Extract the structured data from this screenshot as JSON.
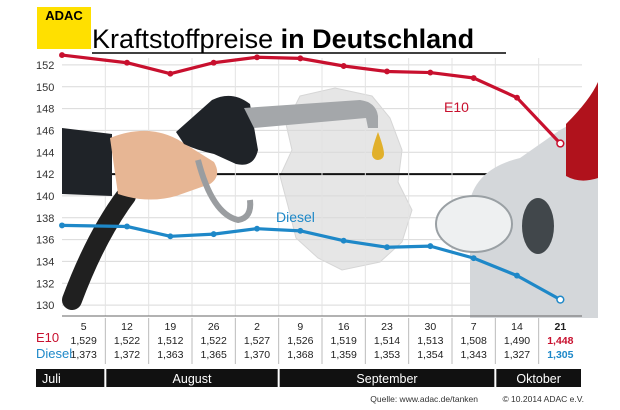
{
  "logo": "ADAC",
  "title_light": "Kraftstoffpreise",
  "title_bold": "in Deutschland",
  "source": "Quelle: www.adac.de/tanken",
  "copyright": "© 10.2014  ADAC e.V.",
  "colors": {
    "logo_bg": "#ffe000",
    "e10": "#c8102e",
    "diesel": "#1e88c8",
    "month_bar": "#111111"
  },
  "chart_data": {
    "type": "line",
    "title": "Kraftstoffpreise in Deutschland",
    "xlabel": "",
    "ylabel": "",
    "ylim": [
      129,
      153
    ],
    "yticks": [
      130,
      132,
      134,
      136,
      138,
      140,
      142,
      144,
      146,
      148,
      150,
      152
    ],
    "grid": true,
    "categories": [
      "5",
      "12",
      "19",
      "26",
      "2",
      "9",
      "16",
      "23",
      "30",
      "7",
      "14",
      "21"
    ],
    "table_values": {
      "E10": [
        "1,529",
        "1,522",
        "1,512",
        "1,522",
        "1,527",
        "1,526",
        "1,519",
        "1,514",
        "1,513",
        "1,508",
        "1,490",
        "1,448"
      ],
      "Diesel": [
        "1,373",
        "1,372",
        "1,363",
        "1,365",
        "1,370",
        "1,368",
        "1,359",
        "1,353",
        "1,354",
        "1,343",
        "1,327",
        "1,305"
      ]
    },
    "series": [
      {
        "name": "E10",
        "values": [
          152.9,
          152.2,
          151.2,
          152.2,
          152.7,
          152.6,
          151.9,
          151.4,
          151.3,
          150.8,
          149.0,
          144.8
        ]
      },
      {
        "name": "Diesel",
        "values": [
          137.3,
          137.2,
          136.3,
          136.5,
          137.0,
          136.8,
          135.9,
          135.3,
          135.4,
          134.3,
          132.7,
          130.5
        ]
      }
    ],
    "months": [
      {
        "label": "Juli",
        "from": 0,
        "to": 0
      },
      {
        "label": "August",
        "from": 1,
        "to": 4
      },
      {
        "label": "September",
        "from": 5,
        "to": 9
      },
      {
        "label": "Oktober",
        "from": 10,
        "to": 11
      }
    ]
  }
}
